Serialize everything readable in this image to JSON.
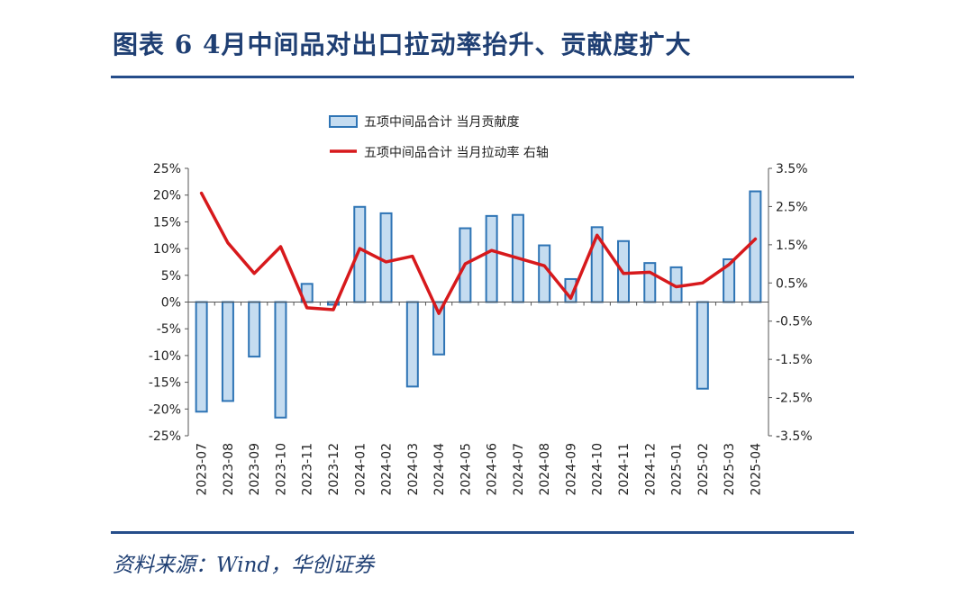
{
  "figure": {
    "title": "图表 6   4月中间品对出口拉动率抬升、贡献度扩大",
    "source": "资料来源：Wind，华创证券"
  },
  "colors": {
    "bar_fill": "#c5dcf0",
    "bar_stroke": "#2e74b5",
    "line": "#d7191c",
    "rule": "#254d8a",
    "title": "#1f3f73"
  },
  "chart_data": {
    "type": "bar",
    "categories": [
      "2023-07",
      "2023-08",
      "2023-09",
      "2023-10",
      "2023-11",
      "2023-12",
      "2024-01",
      "2024-02",
      "2024-03",
      "2024-04",
      "2024-05",
      "2024-06",
      "2024-07",
      "2024-08",
      "2024-09",
      "2024-10",
      "2024-11",
      "2024-12",
      "2025-01",
      "2025-02",
      "2025-03",
      "2025-04"
    ],
    "series": [
      {
        "name": "五项中间品合计  当月贡献度",
        "type": "bar",
        "axis": "left",
        "values": [
          -20.5,
          -18.5,
          -10.2,
          -21.6,
          3.4,
          -0.5,
          17.8,
          16.6,
          -15.8,
          -9.8,
          13.8,
          16.1,
          16.3,
          10.6,
          4.3,
          14.0,
          11.4,
          7.3,
          6.5,
          -16.2,
          8.0,
          20.7
        ]
      },
      {
        "name": "五项中间品合计  当月拉动率  右轴",
        "type": "line",
        "axis": "right",
        "values": [
          2.85,
          1.55,
          0.75,
          1.45,
          -0.15,
          -0.2,
          1.4,
          1.05,
          1.2,
          -0.3,
          1.0,
          1.35,
          1.15,
          0.95,
          0.1,
          1.75,
          0.75,
          0.78,
          0.4,
          0.5,
          0.98,
          1.65
        ]
      }
    ],
    "y_left": {
      "ylim": [
        -25,
        25
      ],
      "ticks": [
        "-25%",
        "-20%",
        "-15%",
        "-10%",
        "-5%",
        "0%",
        "5%",
        "10%",
        "15%",
        "20%",
        "25%"
      ]
    },
    "y_right": {
      "ylim": [
        -3.5,
        3.5
      ],
      "ticks": [
        "-3.5%",
        "-2.5%",
        "-1.5%",
        "-0.5%",
        "0.5%",
        "1.5%",
        "2.5%",
        "3.5%"
      ]
    },
    "legend": "top-center",
    "grid": false
  }
}
